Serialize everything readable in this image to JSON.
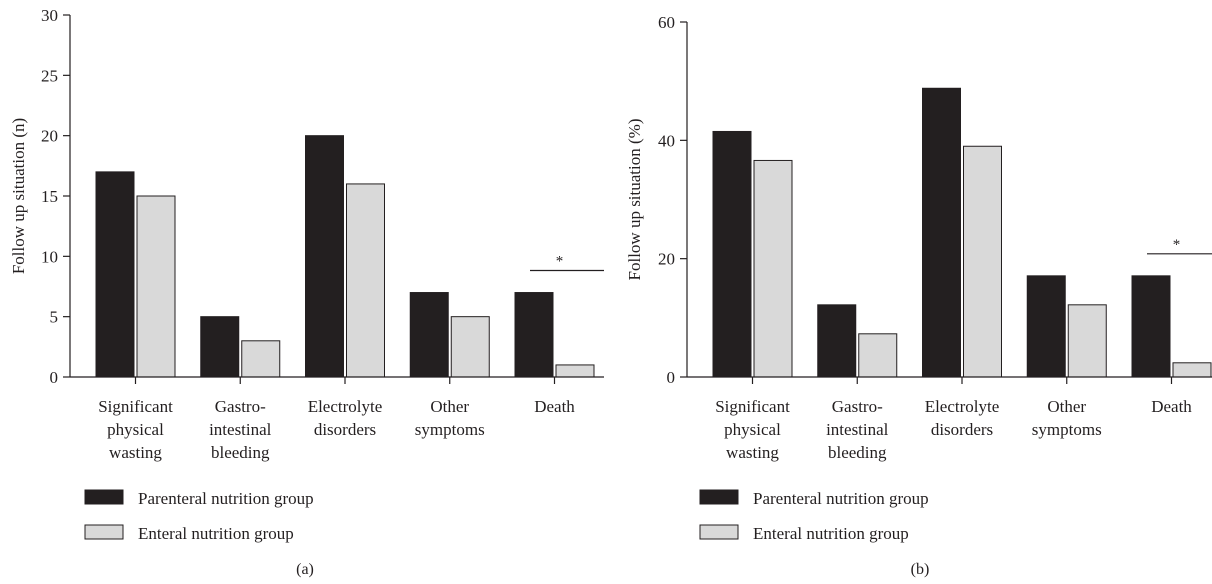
{
  "chart_data": [
    {
      "type": "bar",
      "ylabel": "Follow up situation (n)",
      "ylim": [
        0,
        30
      ],
      "yticks": [
        "0",
        "5",
        "10",
        "15",
        "20",
        "25",
        "30"
      ],
      "categories": [
        [
          "Significant",
          "physical",
          "wasting"
        ],
        [
          "Gastro-",
          "intestinal",
          "bleeding"
        ],
        [
          "Electrolyte",
          "disorders"
        ],
        [
          "Other",
          "symptoms"
        ],
        [
          "Death"
        ]
      ],
      "series": [
        {
          "name": "Parenteral nutrition group",
          "color": "#231f20",
          "values": [
            17,
            5,
            20,
            7,
            7
          ]
        },
        {
          "name": "Enteral nutrition group",
          "color": "#d9d9d9",
          "values": [
            15,
            3,
            16,
            5,
            1
          ]
        }
      ],
      "significance": {
        "category_index": 4,
        "marker": "*"
      },
      "panel_label": "(a)"
    },
    {
      "type": "bar",
      "ylabel": "Follow up situation (%)",
      "ylim": [
        0,
        60
      ],
      "yticks": [
        "0",
        "20",
        "40",
        "60"
      ],
      "categories": [
        [
          "Significant",
          "physical",
          "wasting"
        ],
        [
          "Gastro-",
          "intestinal",
          "bleeding"
        ],
        [
          "Electrolyte",
          "disorders"
        ],
        [
          "Other",
          "symptoms"
        ],
        [
          "Death"
        ]
      ],
      "series": [
        {
          "name": "Parenteral nutrition group",
          "color": "#231f20",
          "values": [
            41.5,
            12.2,
            48.8,
            17.1,
            17.1
          ]
        },
        {
          "name": "Enteral nutrition group",
          "color": "#d9d9d9",
          "values": [
            36.6,
            7.3,
            39.0,
            12.2,
            2.4
          ]
        }
      ],
      "significance": {
        "category_index": 4,
        "marker": "*"
      },
      "panel_label": "(b)"
    }
  ]
}
